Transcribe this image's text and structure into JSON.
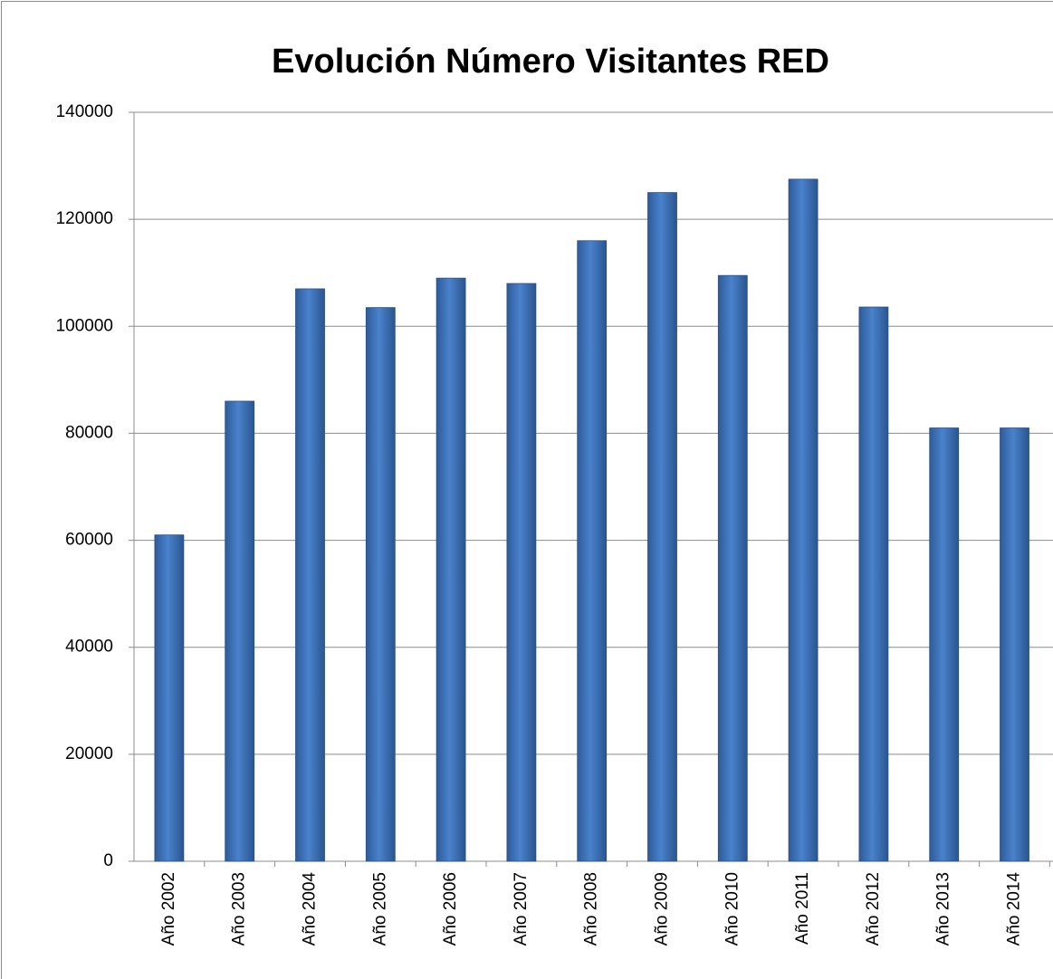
{
  "chart_data": {
    "type": "bar",
    "title": "Evolución Número Visitantes RED",
    "categories": [
      "Año 2002",
      "Año 2003",
      "Año 2004",
      "Año 2005",
      "Año 2006",
      "Año 2007",
      "Año 2008",
      "Año 2009",
      "Año 2010",
      "Año 2011",
      "Año 2012",
      "Año 2013",
      "Año 2014"
    ],
    "values": [
      61000,
      86000,
      107000,
      103500,
      109000,
      108000,
      116000,
      125000,
      109500,
      127500,
      103600,
      81000,
      81000
    ],
    "color": "#3f74bb",
    "ylim": [
      0,
      140000
    ],
    "yticks": [
      0,
      20000,
      40000,
      60000,
      80000,
      100000,
      120000,
      140000
    ],
    "grid": true
  }
}
